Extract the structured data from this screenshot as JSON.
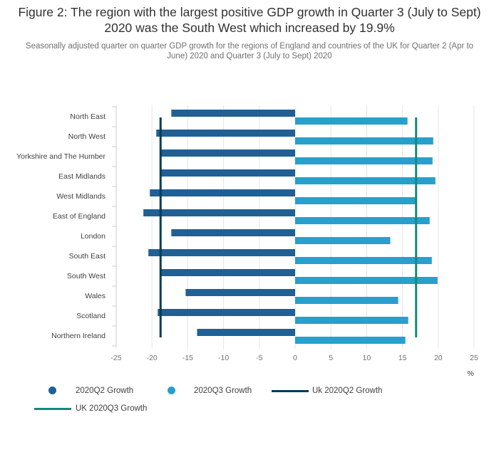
{
  "title": "Figure 2: The region with the largest positive GDP growth in Quarter 3 (July to Sept) 2020 was the South West which increased by 19.9%",
  "subtitle": "Seasonally adjusted quarter on quarter GDP growth for the regions of England and countries of the UK for Quarter 2 (Apr to June) 2020 and Quarter 3 (July to Sept) 2020",
  "colors": {
    "q2": "#206095",
    "q3": "#27a0cc",
    "uk_q2": "#003c57",
    "uk_q3": "#118c7b",
    "grid": "#e6e6e6",
    "axis_text": "#707071"
  },
  "chart_data": {
    "type": "bar",
    "orientation": "horizontal",
    "categories": [
      "North East",
      "North West",
      "Yorkshire and The Humber",
      "East Midlands",
      "West Midlands",
      "East of England",
      "London",
      "South East",
      "South West",
      "Wales",
      "Scotland",
      "Northern Ireland"
    ],
    "series": [
      {
        "name": "2020Q2 Growth",
        "values": [
          -17.3,
          -19.4,
          -18.8,
          -18.7,
          -20.3,
          -21.2,
          -17.3,
          -20.5,
          -18.9,
          -15.3,
          -19.2,
          -13.7
        ]
      },
      {
        "name": "2020Q3 Growth",
        "values": [
          15.7,
          19.3,
          19.2,
          19.6,
          16.8,
          18.8,
          13.3,
          19.1,
          19.9,
          14.4,
          15.8,
          15.4
        ]
      }
    ],
    "reference_lines": [
      {
        "name": "Uk 2020Q2 Growth",
        "value": -18.8
      },
      {
        "name": "UK 2020Q3 Growth",
        "value": 16.9
      }
    ],
    "xlim": [
      -25,
      25
    ],
    "xticks": [
      -25,
      -20,
      -15,
      -10,
      -5,
      0,
      5,
      10,
      15,
      20,
      25
    ],
    "xlabel": "%",
    "ylabel": "",
    "grid": true,
    "legend_position": "bottom-left"
  },
  "legend": {
    "items": [
      "2020Q2 Growth",
      "2020Q3 Growth",
      "Uk 2020Q2 Growth",
      "UK 2020Q3 Growth"
    ]
  }
}
